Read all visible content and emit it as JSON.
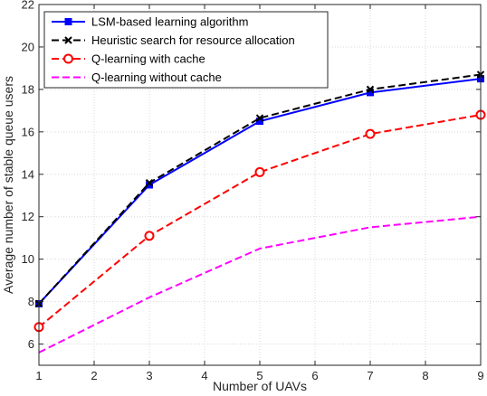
{
  "chart_data": {
    "type": "line",
    "xlabel": "Number of UAVs",
    "ylabel": "Average number of stable queue users",
    "xlim": [
      1,
      9
    ],
    "ylim": [
      5,
      22
    ],
    "xticks": [
      1,
      2,
      3,
      4,
      5,
      6,
      7,
      8,
      9
    ],
    "yticks": [
      6,
      8,
      10,
      12,
      14,
      16,
      18,
      20,
      22
    ],
    "grid": true,
    "legend_position": "top-left",
    "x": [
      1,
      3,
      5,
      7,
      9
    ],
    "series": [
      {
        "name": "LSM-based learning algorithm",
        "values": [
          7.9,
          13.5,
          16.5,
          17.85,
          18.5
        ],
        "color": "#0000ff",
        "line": "solid",
        "marker": "square"
      },
      {
        "name": "Heuristic search for resource allocation",
        "values": [
          7.9,
          13.6,
          16.65,
          18.0,
          18.7
        ],
        "color": "#000000",
        "line": "dashed",
        "marker": "x"
      },
      {
        "name": "Q-learning with cache",
        "values": [
          6.8,
          11.1,
          14.1,
          15.9,
          16.8
        ],
        "color": "#ff0000",
        "line": "dashed",
        "marker": "circle"
      },
      {
        "name": "Q-learning without cache",
        "values": [
          5.6,
          8.2,
          10.5,
          11.5,
          12.0
        ],
        "color": "#ff00ff",
        "line": "dashed",
        "marker": "none"
      }
    ]
  }
}
